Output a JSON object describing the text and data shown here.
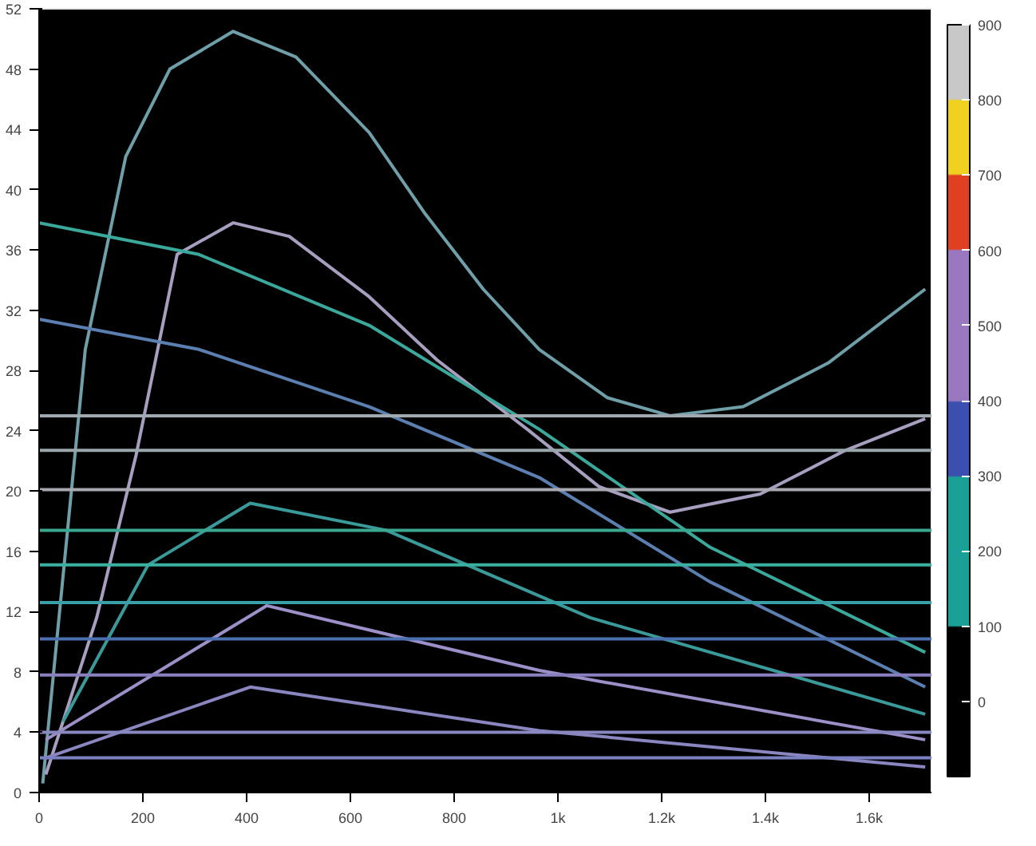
{
  "chart_data": {
    "type": "line",
    "xlim": [
      0,
      1720
    ],
    "ylim": [
      0,
      52
    ],
    "xticks": [
      0,
      200,
      400,
      600,
      800,
      {
        "value": 1000,
        "label": "1k"
      },
      {
        "value": 1200,
        "label": "1.2k"
      },
      {
        "value": 1400,
        "label": "1.4k"
      },
      {
        "value": 1600,
        "label": "1.6k"
      }
    ],
    "yticks": [
      0,
      4,
      8,
      12,
      16,
      20,
      24,
      28,
      32,
      36,
      40,
      44,
      48,
      52
    ],
    "clim": [
      -100,
      900
    ],
    "cticks": [
      0,
      100,
      200,
      300,
      400,
      500,
      600,
      700,
      800,
      900
    ],
    "grid": false,
    "marker": "none",
    "line_style": "solid",
    "series": [
      {
        "color": "#6f9fa8",
        "x": [
          7,
          89,
          167,
          252,
          374,
          495,
          636,
          744,
          856,
          964,
          1095,
          1216,
          1357,
          1521,
          1708
        ],
        "values": [
          0.6,
          29.4,
          42.2,
          48.0,
          50.5,
          48.8,
          43.8,
          38.4,
          33.4,
          29.4,
          26.2,
          25.0,
          25.6,
          28.5,
          33.4
        ]
      },
      {
        "color": "#a89fc0",
        "x": [
          13,
          111,
          187,
          266,
          374,
          482,
          636,
          767,
          941,
          1079,
          1216,
          1390,
          1554,
          1708
        ],
        "values": [
          1.2,
          11.6,
          22.4,
          35.7,
          37.8,
          36.9,
          32.9,
          28.7,
          24.1,
          20.3,
          18.6,
          19.8,
          22.7,
          24.8
        ]
      },
      {
        "color": "#3aa89a",
        "x": [
          0,
          308,
          636,
          964,
          1292,
          1708
        ],
        "values": [
          37.8,
          35.7,
          31.0,
          24.1,
          16.3,
          9.3
        ]
      },
      {
        "color": "#5a7fb0",
        "x": [
          0,
          308,
          636,
          964,
          1292,
          1708
        ],
        "values": [
          31.4,
          29.4,
          25.6,
          20.9,
          14.0,
          7.0
        ]
      },
      {
        "color": "#3a9a9a",
        "x": [
          46,
          210,
          407,
          669,
          1062,
          1708
        ],
        "values": [
          4.7,
          15.1,
          19.2,
          17.4,
          11.6,
          5.2
        ]
      },
      {
        "color": "#9d8fc8",
        "x": [
          13,
          439,
          964,
          1708
        ],
        "values": [
          3.5,
          12.4,
          8.1,
          3.5
        ]
      },
      {
        "color": "#8a86c0",
        "x": [
          13,
          407,
          964,
          1708
        ],
        "values": [
          2.3,
          7.0,
          4.1,
          1.7
        ]
      },
      {
        "color": "#a0a8b0",
        "x": [
          0,
          1720
        ],
        "values": [
          25.0,
          25.0
        ]
      },
      {
        "color": "#9aa6aa",
        "x": [
          0,
          1720
        ],
        "values": [
          22.7,
          22.7
        ]
      },
      {
        "color": "#a8a8b0",
        "x": [
          0,
          1720
        ],
        "values": [
          20.1,
          20.1
        ]
      },
      {
        "color": "#3aa890",
        "x": [
          0,
          1720
        ],
        "values": [
          17.4,
          17.4
        ]
      },
      {
        "color": "#3ab0a0",
        "x": [
          0,
          1720
        ],
        "values": [
          15.1,
          15.1
        ]
      },
      {
        "color": "#3aa0a8",
        "x": [
          0,
          1720
        ],
        "values": [
          12.6,
          12.6
        ]
      },
      {
        "color": "#4a70b0",
        "x": [
          0,
          1720
        ],
        "values": [
          10.2,
          10.2
        ]
      },
      {
        "color": "#8a80c0",
        "x": [
          0,
          1720
        ],
        "values": [
          7.8,
          7.8
        ]
      },
      {
        "color": "#8a88c0",
        "x": [
          0,
          1720
        ],
        "values": [
          4.0,
          4.0
        ]
      },
      {
        "color": "#7a80c0",
        "x": [
          0,
          1720
        ],
        "values": [
          2.3,
          2.3
        ]
      }
    ]
  }
}
